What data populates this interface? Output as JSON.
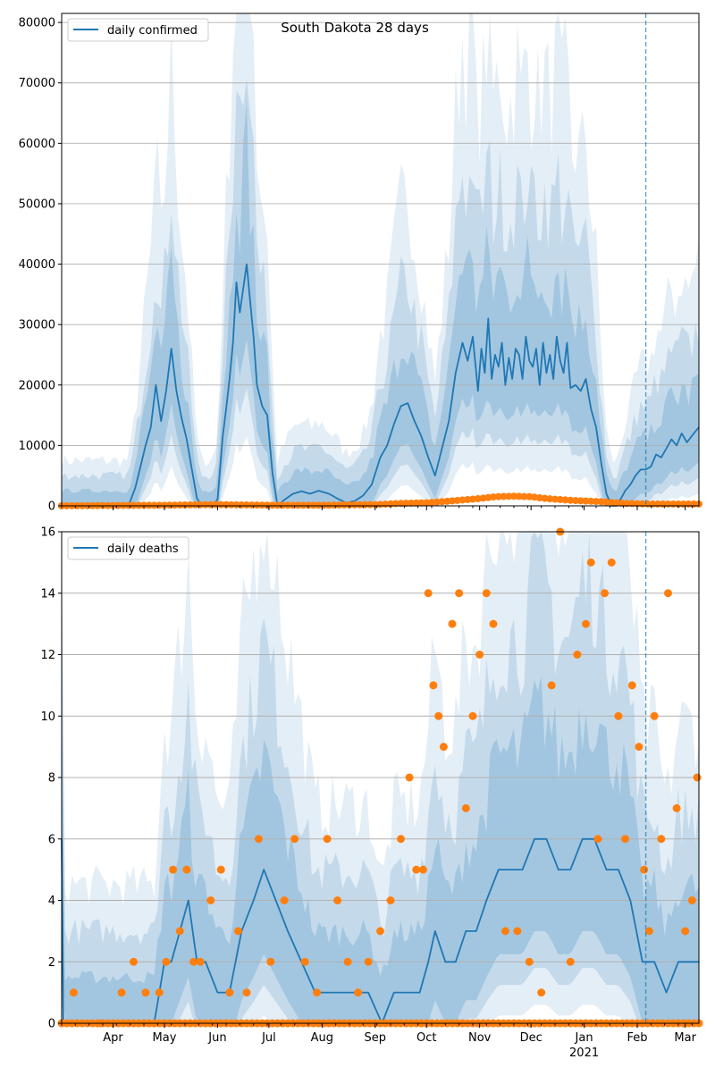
{
  "figure": {
    "title": "South Dakota 28 days",
    "x_tick_labels": [
      "Apr",
      "May",
      "Jun",
      "Jul",
      "Aug",
      "Sep",
      "Oct",
      "Nov",
      "Dec",
      "Jan",
      "Feb",
      "Mar"
    ],
    "x_year_label": "2021",
    "marker_date": "2021-02-06"
  },
  "chart_data": [
    {
      "type": "line",
      "legend": "daily confirmed",
      "legend_position": "top-left",
      "grid": "y",
      "x_range": [
        "2020-03-02",
        "2021-03-09"
      ],
      "ylim": [
        0,
        81500
      ],
      "y_ticks": [
        0,
        10000,
        20000,
        30000,
        40000,
        50000,
        60000,
        70000,
        80000
      ],
      "series": [
        {
          "name": "daily confirmed",
          "color": "#1f77b4",
          "x": [
            "2020-03-02",
            "2020-04-10",
            "2020-04-14",
            "2020-04-17",
            "2020-04-20",
            "2020-04-23",
            "2020-04-26",
            "2020-04-29",
            "2020-05-02",
            "2020-05-05",
            "2020-05-08",
            "2020-05-11",
            "2020-05-14",
            "2020-05-17",
            "2020-05-20",
            "2020-05-23",
            "2020-05-28",
            "2020-06-01",
            "2020-06-04",
            "2020-06-06",
            "2020-06-08",
            "2020-06-10",
            "2020-06-12",
            "2020-06-14",
            "2020-06-16",
            "2020-06-18",
            "2020-06-20",
            "2020-06-22",
            "2020-06-24",
            "2020-06-27",
            "2020-06-30",
            "2020-07-03",
            "2020-07-06",
            "2020-07-10",
            "2020-07-15",
            "2020-07-20",
            "2020-07-25",
            "2020-07-30",
            "2020-08-05",
            "2020-08-10",
            "2020-08-15",
            "2020-08-20",
            "2020-08-25",
            "2020-08-30",
            "2020-09-04",
            "2020-09-08",
            "2020-09-12",
            "2020-09-16",
            "2020-09-20",
            "2020-09-24",
            "2020-09-28",
            "2020-10-02",
            "2020-10-06",
            "2020-10-10",
            "2020-10-14",
            "2020-10-18",
            "2020-10-22",
            "2020-10-25",
            "2020-10-28",
            "2020-10-31",
            "2020-11-02",
            "2020-11-04",
            "2020-11-06",
            "2020-11-08",
            "2020-11-10",
            "2020-11-12",
            "2020-11-14",
            "2020-11-16",
            "2020-11-18",
            "2020-11-20",
            "2020-11-22",
            "2020-11-24",
            "2020-11-26",
            "2020-11-28",
            "2020-11-30",
            "2020-12-02",
            "2020-12-04",
            "2020-12-06",
            "2020-12-08",
            "2020-12-10",
            "2020-12-12",
            "2020-12-14",
            "2020-12-16",
            "2020-12-18",
            "2020-12-20",
            "2020-12-22",
            "2020-12-24",
            "2020-12-27",
            "2020-12-30",
            "2021-01-02",
            "2021-01-05",
            "2021-01-08",
            "2021-01-11",
            "2021-01-14",
            "2021-01-17",
            "2021-01-20",
            "2021-01-23",
            "2021-01-25",
            "2021-01-28",
            "2021-01-31",
            "2021-02-03",
            "2021-02-06",
            "2021-02-09",
            "2021-02-12",
            "2021-02-15",
            "2021-02-18",
            "2021-02-21",
            "2021-02-24",
            "2021-02-27",
            "2021-03-02",
            "2021-03-06",
            "2021-03-09"
          ],
          "y": [
            0,
            0,
            3000,
            6500,
            10000,
            13000,
            20000,
            14000,
            19000,
            26000,
            19000,
            14500,
            11000,
            6000,
            1200,
            0,
            0,
            1000,
            11500,
            16000,
            21000,
            27000,
            37000,
            32000,
            36000,
            40000,
            34000,
            28000,
            20000,
            16500,
            15000,
            5500,
            0,
            1000,
            2000,
            2400,
            2000,
            2500,
            2000,
            1200,
            500,
            800,
            1700,
            3500,
            8000,
            10000,
            13500,
            16500,
            17000,
            14000,
            11500,
            8000,
            5000,
            9500,
            14000,
            22000,
            27000,
            24000,
            28000,
            19000,
            26000,
            22000,
            31000,
            21000,
            25000,
            23000,
            27000,
            20000,
            24500,
            21000,
            26000,
            25000,
            21000,
            28000,
            24000,
            23000,
            26000,
            20000,
            27000,
            22000,
            25000,
            21000,
            28000,
            24000,
            22000,
            27000,
            19500,
            20000,
            19000,
            21000,
            16000,
            13000,
            7000,
            2000,
            0,
            0,
            1500,
            2500,
            3500,
            5000,
            6000,
            6000,
            6500,
            8500,
            8000,
            9500,
            11000,
            10000,
            12000,
            10500,
            12000,
            13000
          ]
        },
        {
          "name": "",
          "color": "#ff7f0e",
          "x": [
            "2020-03-02",
            "2020-05-01",
            "2020-06-01",
            "2020-07-01",
            "2020-08-01",
            "2020-09-01",
            "2020-09-15",
            "2020-10-01",
            "2020-10-15",
            "2020-11-01",
            "2020-11-10",
            "2020-11-20",
            "2020-12-01",
            "2020-12-10",
            "2020-12-25",
            "2021-01-10",
            "2021-01-25",
            "2021-02-10",
            "2021-03-09"
          ],
          "y": [
            0,
            100,
            200,
            100,
            100,
            200,
            400,
            500,
            800,
            1200,
            1500,
            1600,
            1500,
            1200,
            900,
            700,
            400,
            300,
            300
          ]
        }
      ]
    },
    {
      "type": "line",
      "legend": "daily deaths",
      "legend_position": "top-left",
      "grid": "y",
      "x_range": [
        "2020-03-02",
        "2021-03-09"
      ],
      "ylim": [
        0,
        16
      ],
      "y_ticks": [
        0,
        2,
        4,
        6,
        8,
        10,
        12,
        14,
        16
      ],
      "series": [
        {
          "name": "daily deaths",
          "color": "#1f77b4",
          "x": [
            "2020-03-02",
            "2020-03-03",
            "2020-04-25",
            "2020-04-28",
            "2020-05-01",
            "2020-05-05",
            "2020-05-10",
            "2020-05-15",
            "2020-05-20",
            "2020-05-25",
            "2020-06-01",
            "2020-06-08",
            "2020-06-15",
            "2020-06-22",
            "2020-06-28",
            "2020-07-05",
            "2020-07-12",
            "2020-07-20",
            "2020-07-28",
            "2020-08-05",
            "2020-08-12",
            "2020-08-20",
            "2020-08-28",
            "2020-09-05",
            "2020-09-12",
            "2020-09-20",
            "2020-09-27",
            "2020-10-02",
            "2020-10-06",
            "2020-10-12",
            "2020-10-18",
            "2020-10-24",
            "2020-10-30",
            "2020-11-05",
            "2020-11-12",
            "2020-11-19",
            "2020-11-26",
            "2020-12-03",
            "2020-12-10",
            "2020-12-17",
            "2020-12-24",
            "2020-12-31",
            "2021-01-07",
            "2021-01-14",
            "2021-01-21",
            "2021-01-28",
            "2021-02-04",
            "2021-02-11",
            "2021-02-18",
            "2021-02-25",
            "2021-03-04",
            "2021-03-09"
          ],
          "y": [
            6,
            0,
            0,
            1,
            2,
            2,
            3,
            4,
            2,
            2,
            1,
            1,
            3,
            4,
            5,
            4,
            3,
            2,
            1,
            1,
            1,
            1,
            1,
            0,
            1,
            1,
            1,
            2,
            3,
            2,
            2,
            3,
            3,
            4,
            5,
            5,
            5,
            6,
            6,
            5,
            5,
            6,
            6,
            5,
            5,
            4,
            2,
            2,
            1,
            2,
            2,
            2
          ]
        },
        {
          "name": "",
          "color": "#ff7f0e",
          "x": [
            "2020-03-09",
            "2020-03-25",
            "2020-04-06",
            "2020-04-13",
            "2020-04-20",
            "2020-04-28",
            "2020-05-02",
            "2020-05-06",
            "2020-05-10",
            "2020-05-14",
            "2020-05-18",
            "2020-05-22",
            "2020-05-28",
            "2020-06-03",
            "2020-06-08",
            "2020-06-13",
            "2020-06-18",
            "2020-06-25",
            "2020-07-02",
            "2020-07-10",
            "2020-07-16",
            "2020-07-22",
            "2020-07-29",
            "2020-08-04",
            "2020-08-10",
            "2020-08-16",
            "2020-08-22",
            "2020-08-28",
            "2020-09-04",
            "2020-09-10",
            "2020-09-16",
            "2020-09-21",
            "2020-09-25",
            "2020-09-29",
            "2020-10-02",
            "2020-10-05",
            "2020-10-08",
            "2020-10-11",
            "2020-10-16",
            "2020-10-20",
            "2020-10-24",
            "2020-10-28",
            "2020-11-01",
            "2020-11-05",
            "2020-11-09",
            "2020-11-16",
            "2020-11-23",
            "2020-11-30",
            "2020-12-07",
            "2020-12-13",
            "2020-12-18",
            "2020-12-24",
            "2020-12-28",
            "2021-01-02",
            "2021-01-05",
            "2021-01-09",
            "2021-01-13",
            "2021-01-17",
            "2021-01-21",
            "2021-01-25",
            "2021-01-29",
            "2021-02-02",
            "2021-02-05",
            "2021-02-08",
            "2021-02-11",
            "2021-02-15",
            "2021-02-19",
            "2021-02-24",
            "2021-03-01",
            "2021-03-05",
            "2021-03-08"
          ],
          "y": [
            1,
            0,
            1,
            2,
            1,
            1,
            2,
            5,
            3,
            5,
            2,
            2,
            4,
            5,
            1,
            3,
            1,
            6,
            2,
            4,
            6,
            2,
            1,
            6,
            4,
            2,
            1,
            2,
            3,
            4,
            6,
            8,
            5,
            5,
            14,
            11,
            10,
            9,
            13,
            14,
            7,
            10,
            12,
            14,
            13,
            3,
            3,
            2,
            1,
            11,
            16,
            2,
            12,
            13,
            15,
            6,
            14,
            15,
            10,
            6,
            11,
            9,
            5,
            3,
            10,
            6,
            14,
            7,
            3,
            4,
            8
          ]
        }
      ]
    }
  ]
}
